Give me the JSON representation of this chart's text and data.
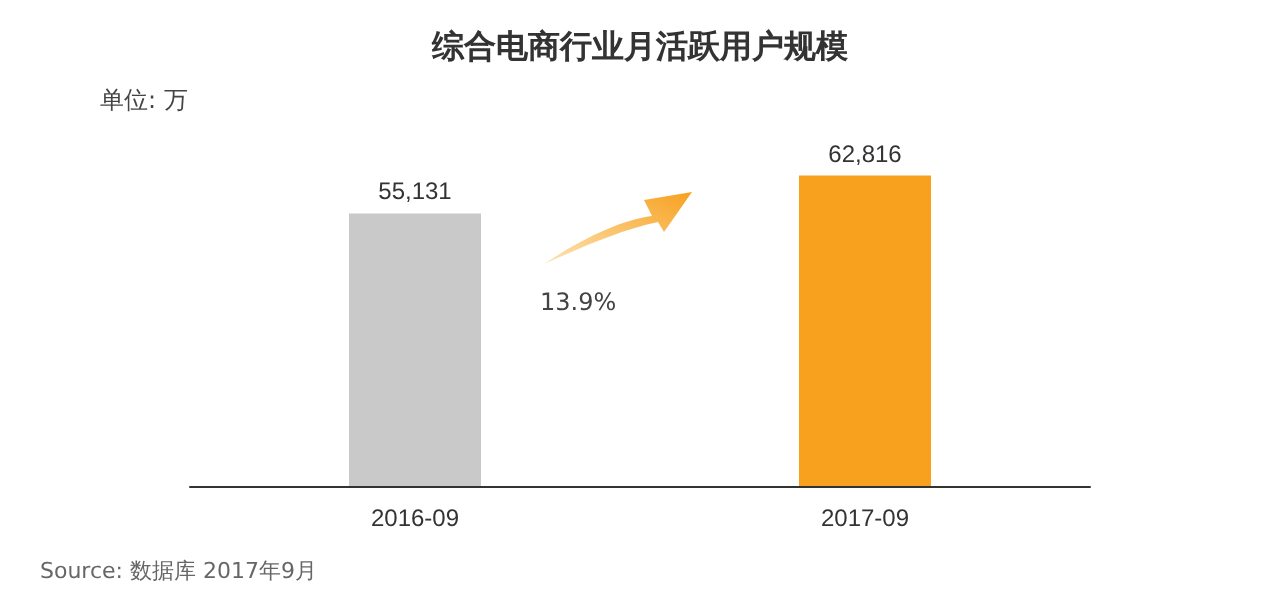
{
  "chart_data": {
    "type": "bar",
    "title": "综合电商行业月活跃用户规模",
    "categories": [
      "2016-09",
      "2017-09"
    ],
    "values": [
      55131,
      62816
    ],
    "colors": [
      "#c9c9c9",
      "#f7a11f"
    ],
    "data_labels": true,
    "value_labels": [
      "55,131",
      "62,816"
    ],
    "annotations": [
      "单位: 万",
      "13.9%",
      "Source: 数据库 2017年9月"
    ]
  }
}
